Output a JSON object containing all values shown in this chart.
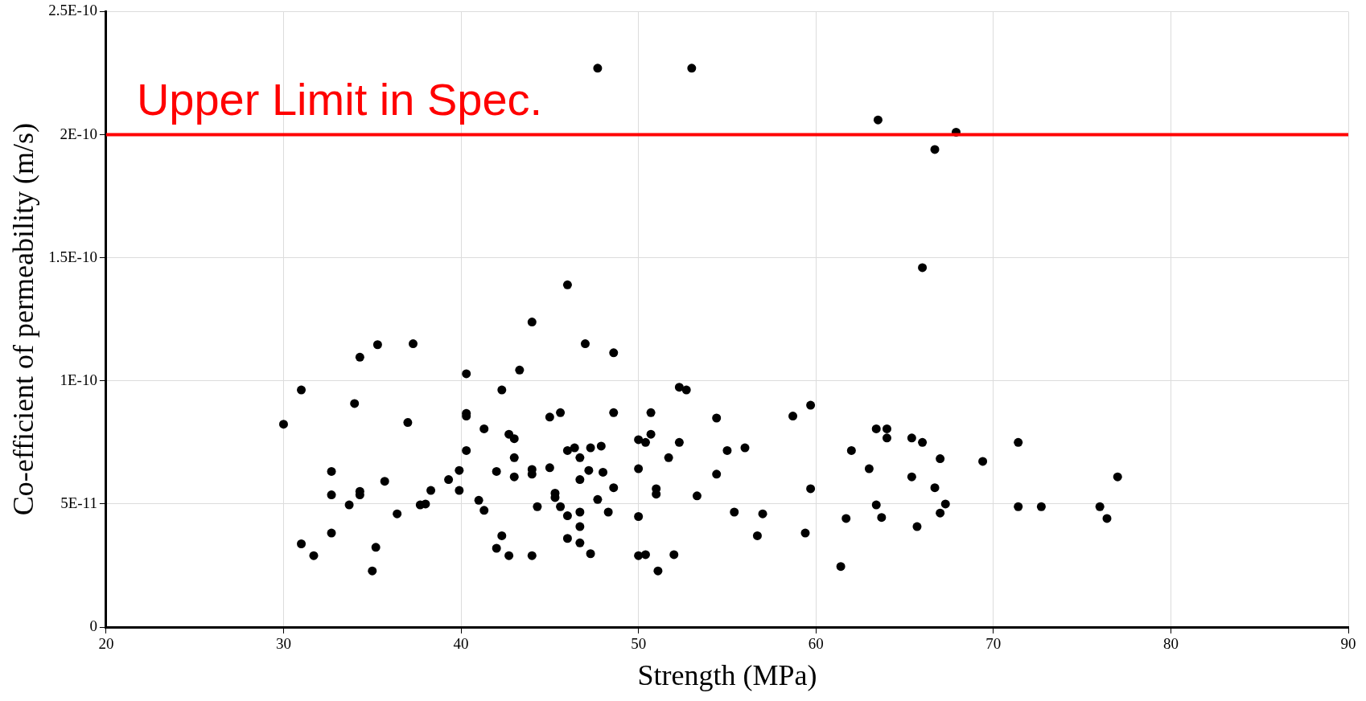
{
  "chart_data": {
    "type": "scatter",
    "xlabel": "Strength (MPa)",
    "ylabel": "Co-efficient of permeability (m/s)",
    "xlim": [
      20,
      90
    ],
    "xticks": [
      20,
      30,
      40,
      50,
      60,
      70,
      80,
      90
    ],
    "ylim": [
      0,
      2.5e-10
    ],
    "yticks": [
      0,
      {
        "value": 5e-11,
        "label": "5E-11"
      },
      {
        "value": 1e-10,
        "label": "1E-10"
      },
      {
        "value": 1.5e-10,
        "label": "1.5E-10"
      },
      {
        "value": 2e-10,
        "label": "2E-10"
      },
      {
        "value": 2.5e-10,
        "label": "2.5E-10"
      }
    ],
    "grid": true,
    "legend": false,
    "marker": "circle",
    "ref_lines": [
      {
        "axis": "y",
        "value": 2e-10,
        "label": "Upper Limit in Spec.",
        "color": "#ff0000"
      }
    ],
    "series": [
      {
        "color": "#000000",
        "x": [
          30.0,
          31.0,
          31.0,
          31.7,
          32.7,
          32.7,
          32.7,
          33.7,
          34.0,
          34.3,
          34.3,
          34.3,
          35.0,
          35.2,
          35.3,
          35.7,
          36.4,
          37.0,
          37.3,
          37.7,
          38.0,
          38.3,
          39.3,
          39.9,
          39.9,
          40.3,
          40.3,
          40.3,
          40.3,
          41.0,
          41.3,
          41.3,
          42.0,
          42.0,
          42.3,
          42.3,
          42.7,
          42.7,
          43.0,
          43.0,
          43.0,
          43.3,
          44.0,
          44.0,
          44.0,
          44.0,
          44.3,
          45.0,
          45.0,
          45.3,
          45.3,
          45.6,
          45.6,
          46.0,
          46.0,
          46.0,
          46.0,
          46.4,
          46.7,
          46.7,
          46.7,
          46.7,
          46.7,
          47.0,
          47.2,
          47.3,
          47.3,
          47.7,
          47.7,
          47.9,
          48.0,
          48.3,
          48.6,
          48.6,
          48.6,
          50.0,
          50.0,
          50.0,
          50.0,
          50.4,
          50.4,
          50.7,
          50.7,
          51.0,
          51.0,
          51.1,
          51.7,
          52.0,
          52.3,
          52.3,
          52.7,
          53.0,
          53.3,
          54.4,
          54.4,
          55.0,
          55.4,
          56.0,
          56.7,
          57.0,
          58.7,
          59.4,
          59.7,
          59.7,
          61.4,
          61.7,
          62.0,
          63.0,
          63.4,
          63.4,
          63.5,
          63.7,
          64.0,
          64.0,
          65.4,
          65.4,
          65.7,
          66.0,
          66.0,
          66.7,
          66.7,
          67.0,
          67.0,
          67.3,
          67.9,
          69.4,
          71.4,
          71.4,
          72.7,
          76.0,
          76.4,
          77.0
        ],
        "values": [
          8.24e-11,
          9.63e-11,
          3.38e-11,
          2.9e-11,
          6.32e-11,
          5.37e-11,
          3.82e-11,
          4.96e-11,
          9.08e-11,
          1.096e-10,
          5.51e-11,
          5.37e-11,
          2.28e-11,
          3.24e-11,
          1.147e-10,
          5.92e-11,
          4.6e-11,
          8.31e-11,
          1.151e-10,
          4.96e-11,
          5e-11,
          5.55e-11,
          5.99e-11,
          6.36e-11,
          5.55e-11,
          1.029e-10,
          8.68e-11,
          8.57e-11,
          7.17e-11,
          5.15e-11,
          8.05e-11,
          4.74e-11,
          6.32e-11,
          3.2e-11,
          9.63e-11,
          3.71e-11,
          7.83e-11,
          2.9e-11,
          7.65e-11,
          6.88e-11,
          6.1e-11,
          1.044e-10,
          1.239e-10,
          6.4e-11,
          6.21e-11,
          2.9e-11,
          4.89e-11,
          6.47e-11,
          8.53e-11,
          5.44e-11,
          5.26e-11,
          8.71e-11,
          4.89e-11,
          1.39e-10,
          7.17e-11,
          4.52e-11,
          3.6e-11,
          7.28e-11,
          6.88e-11,
          5.99e-11,
          4.67e-11,
          4.08e-11,
          3.42e-11,
          1.151e-10,
          6.36e-11,
          7.28e-11,
          2.98e-11,
          2.27e-10,
          5.18e-11,
          7.35e-11,
          6.29e-11,
          4.67e-11,
          1.114e-10,
          8.71e-11,
          5.66e-11,
          7.61e-11,
          6.43e-11,
          4.49e-11,
          2.9e-11,
          7.5e-11,
          2.94e-11,
          8.71e-11,
          7.83e-11,
          5.62e-11,
          5.4e-11,
          2.28e-11,
          6.88e-11,
          2.94e-11,
          7.5e-11,
          9.74e-11,
          9.63e-11,
          2.27e-10,
          5.33e-11,
          8.49e-11,
          6.21e-11,
          7.17e-11,
          4.67e-11,
          7.28e-11,
          3.71e-11,
          4.6e-11,
          8.57e-11,
          3.82e-11,
          9.01e-11,
          5.62e-11,
          2.46e-11,
          4.41e-11,
          7.17e-11,
          6.43e-11,
          8.05e-11,
          4.96e-11,
          2.06e-10,
          4.45e-11,
          8.05e-11,
          7.68e-11,
          7.68e-11,
          6.1e-11,
          4.08e-11,
          7.5e-11,
          1.46e-10,
          1.94e-10,
          5.66e-11,
          6.84e-11,
          4.63e-11,
          5e-11,
          2.01e-10,
          6.73e-11,
          7.5e-11,
          4.89e-11,
          4.89e-11,
          4.89e-11,
          4.41e-11,
          6.1e-11
        ]
      }
    ]
  }
}
